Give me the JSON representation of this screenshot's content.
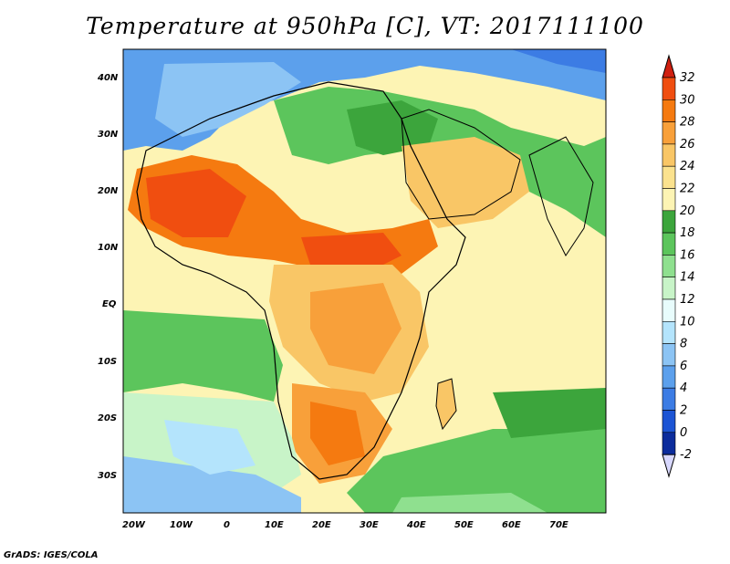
{
  "title": "Temperature at 950hPa [C], VT: 2017111100",
  "credit": "GrADS: IGES/COLA",
  "lat_ticks": [
    "40N",
    "30N",
    "20N",
    "10N",
    "EQ",
    "10S",
    "20S",
    "30S"
  ],
  "lon_ticks": [
    "20W",
    "10W",
    "0",
    "10E",
    "20E",
    "30E",
    "40E",
    "50E",
    "60E",
    "70E"
  ],
  "colorbar": {
    "levels": [
      "32",
      "30",
      "28",
      "26",
      "24",
      "22",
      "20",
      "18",
      "16",
      "14",
      "12",
      "10",
      "8",
      "6",
      "4",
      "2",
      "0",
      "-2"
    ],
    "colors": [
      "#d02010",
      "#f04e10",
      "#f57a10",
      "#f8a03a",
      "#f9c666",
      "#fbe28e",
      "#fdf4b4",
      "#3ca53c",
      "#5cc55c",
      "#8fe08f",
      "#c8f4c8",
      "#e8fcfc",
      "#b4e4fc",
      "#8cc4f4",
      "#5ca0ec",
      "#3c7ce4",
      "#1c54d4",
      "#0c2c9c",
      "#0a1a6a"
    ]
  },
  "map_regions": {
    "ocean_color": "#8cc4f4",
    "land_colors": [
      "#f9c666",
      "#f8a03a",
      "#f57a10",
      "#f04e10",
      "#5cc55c",
      "#3ca53c",
      "#fbe28e",
      "#c8f4c8",
      "#e8fcfc",
      "#b4e4fc"
    ]
  }
}
